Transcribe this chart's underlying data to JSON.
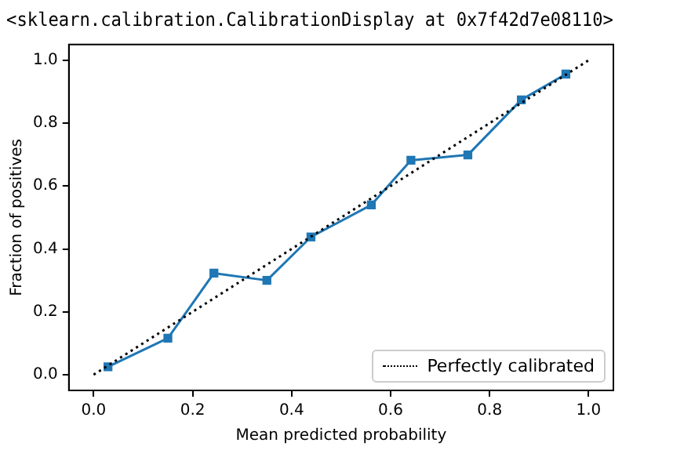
{
  "chart_data": {
    "type": "line",
    "title": "<sklearn.calibration.CalibrationDisplay at 0x7f42d7e08110>",
    "xlabel": "Mean predicted probability",
    "ylabel": "Fraction of positives",
    "series": [
      {
        "name": "Perfectly calibrated",
        "color": "#000000",
        "x": [
          0,
          1
        ],
        "values": [
          0,
          1
        ],
        "line_style": "dotted",
        "marker": "none"
      },
      {
        "color": "#1f77b4",
        "x": [
          0.029,
          0.15,
          0.243,
          0.35,
          0.439,
          0.561,
          0.641,
          0.756,
          0.864,
          0.954
        ],
        "values": [
          0.025,
          0.116,
          0.323,
          0.3,
          0.438,
          0.54,
          0.682,
          0.699,
          0.874,
          0.956
        ],
        "line_style": "solid",
        "marker": "square"
      }
    ],
    "xlim": [
      -0.05,
      1.05
    ],
    "ylim": [
      -0.05,
      1.05
    ],
    "xticks": [
      {
        "value": 0,
        "label": "0.0"
      },
      0.2,
      0.4,
      0.6,
      0.8,
      {
        "value": 1,
        "label": "1.0"
      }
    ],
    "yticks": [
      {
        "value": 0,
        "label": "0.0"
      },
      0.2,
      0.4,
      0.6,
      0.8,
      {
        "value": 1,
        "label": "1.0"
      }
    ],
    "grid": false,
    "legend": "bottom right"
  }
}
